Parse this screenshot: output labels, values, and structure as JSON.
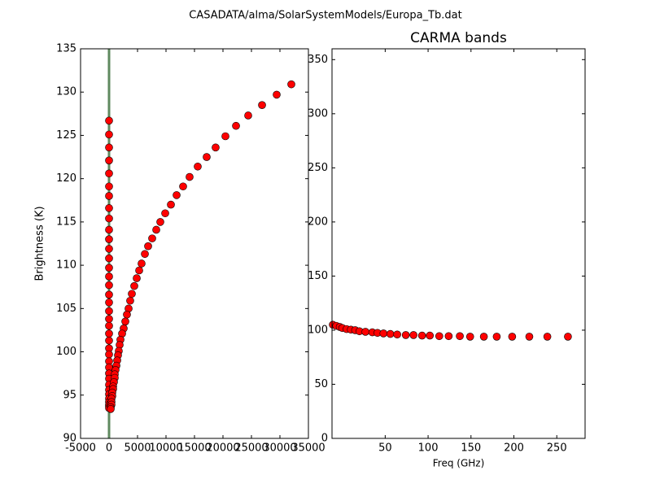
{
  "title": "CASADATA/alma/SolarSystemModels/Europa_Tb.dat",
  "chart_data": [
    {
      "type": "scatter",
      "ylabel": "Brightness (K)",
      "xlim": [
        -5000,
        35000
      ],
      "xticks": [
        -5000,
        0,
        5000,
        10000,
        15000,
        20000,
        25000,
        30000,
        35000
      ],
      "ylim": [
        90,
        135
      ],
      "yticks": [
        90,
        95,
        100,
        105,
        110,
        115,
        120,
        125,
        130,
        135
      ],
      "vline": {
        "x": 0,
        "color": "#5f8a5f"
      },
      "series": [
        {
          "color": "#ff0000",
          "x": [
            0,
            0,
            0,
            0,
            0,
            0,
            0,
            0,
            0,
            0,
            0,
            0,
            0,
            0,
            0,
            0,
            0,
            0,
            0,
            0,
            0,
            0,
            0,
            0,
            0,
            0,
            0,
            0,
            0,
            0,
            0,
            0,
            0,
            0,
            0,
            0,
            0
          ],
          "values": [
            126.7,
            125.1,
            123.6,
            122.1,
            120.6,
            119.1,
            118.0,
            116.6,
            115.4,
            114.1,
            113.0,
            111.9,
            110.8,
            109.7,
            108.7,
            107.7,
            106.6,
            105.7,
            104.7,
            103.8,
            103.0,
            102.1,
            101.3,
            100.4,
            99.7,
            98.9,
            98.2,
            97.5,
            96.9,
            96.2,
            95.6,
            95.1,
            94.6,
            94.2,
            93.9,
            93.7,
            93.5
          ]
        },
        {
          "color": "#ff0000",
          "x": [
            32000,
            29430,
            26860,
            24430,
            22290,
            20430,
            18710,
            17140,
            15570,
            14140,
            13000,
            11860,
            10860,
            9860,
            9000,
            8290,
            7570,
            6860,
            6290,
            5710,
            5290,
            4860,
            4430,
            4000,
            3710,
            3430,
            3140,
            2860,
            2570,
            2290,
            2000,
            1860,
            1710,
            1570,
            1430,
            1290,
            1140,
            1000,
            1000,
            860,
            710,
            710,
            570,
            570,
            430,
            430,
            430,
            290,
            290
          ],
          "values": [
            130.9,
            129.7,
            128.5,
            127.3,
            126.1,
            124.9,
            123.6,
            122.5,
            121.4,
            120.2,
            119.1,
            118.1,
            117.0,
            116.0,
            115.0,
            114.1,
            113.1,
            112.2,
            111.3,
            110.2,
            109.4,
            108.5,
            107.6,
            106.7,
            105.9,
            105.0,
            104.3,
            103.5,
            102.7,
            102.1,
            101.4,
            100.8,
            100.1,
            99.6,
            99.0,
            98.4,
            97.9,
            97.4,
            97.0,
            96.5,
            96.0,
            95.7,
            95.3,
            94.9,
            94.6,
            94.2,
            93.9,
            93.6,
            93.4
          ]
        }
      ]
    },
    {
      "type": "scatter",
      "title": "CARMA bands",
      "xlabel": "Freq (GHz)",
      "xlim": [
        -12,
        283
      ],
      "xticks": [
        50,
        100,
        150,
        200,
        250
      ],
      "ylim": [
        0,
        360
      ],
      "yticks": [
        0,
        50,
        100,
        150,
        200,
        250,
        300,
        350
      ],
      "series": [
        {
          "color": "#ff0000",
          "x": [
            -11,
            -7,
            -3,
            0,
            5,
            10,
            15,
            20,
            27,
            35,
            41,
            48,
            56,
            64,
            74,
            83,
            93,
            102,
            113,
            124,
            137,
            149,
            165,
            180,
            198,
            218,
            239,
            263
          ],
          "values": [
            105,
            104,
            103,
            102,
            101,
            100.5,
            100,
            99,
            98.5,
            98,
            97.5,
            97,
            96.5,
            96,
            95.5,
            95.5,
            95,
            95,
            94.5,
            94.5,
            94.5,
            94,
            94,
            94,
            94,
            94,
            94,
            94
          ]
        }
      ]
    }
  ]
}
